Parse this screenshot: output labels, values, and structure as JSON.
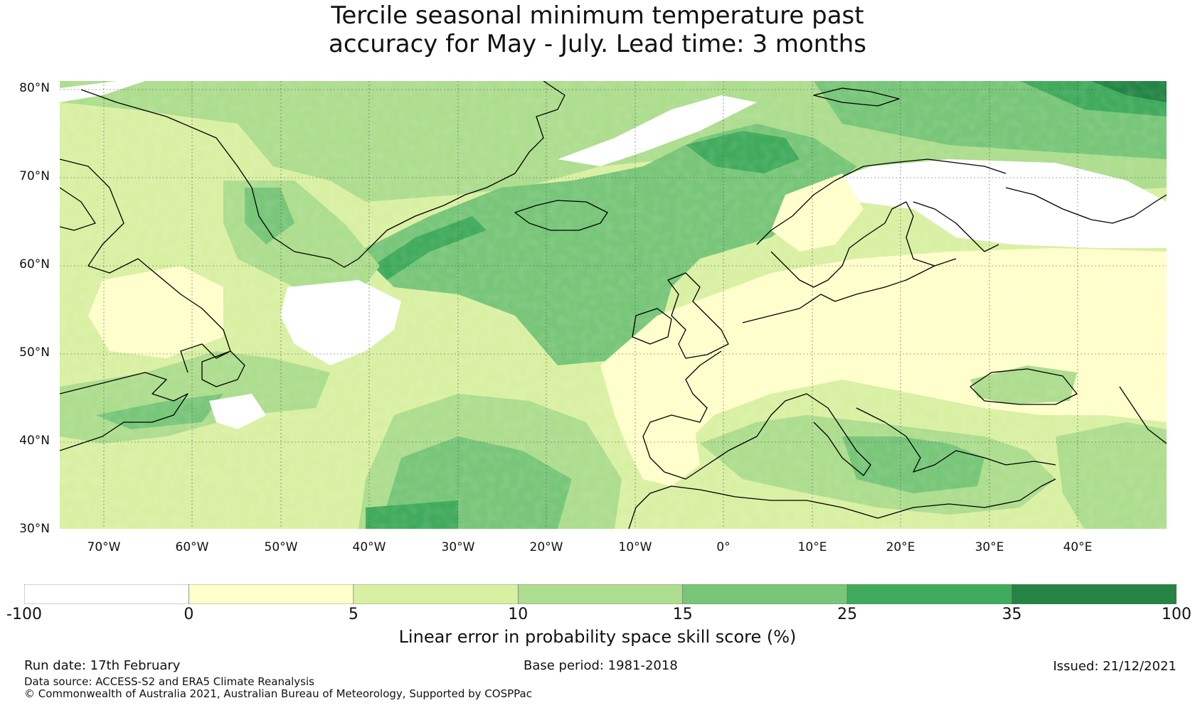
{
  "title_line1": "Tercile seasonal minimum temperature past",
  "title_line2": "accuracy for May - July. Lead time: 3 months",
  "map": {
    "lat_labels": [
      "80°N",
      "70°N",
      "60°N",
      "50°N",
      "40°N",
      "30°N"
    ],
    "lat_values": [
      80,
      70,
      60,
      50,
      40,
      30
    ],
    "lon_labels": [
      "70°W",
      "60°W",
      "50°W",
      "40°W",
      "30°W",
      "20°W",
      "10°W",
      "0°",
      "10°E",
      "20°E",
      "30°E",
      "40°E"
    ],
    "lon_values": [
      -70,
      -60,
      -50,
      -40,
      -30,
      -20,
      -10,
      0,
      10,
      20,
      30,
      40
    ],
    "extent": {
      "lon_min": -75,
      "lon_max": 50,
      "lat_min": 30,
      "lat_max": 81
    },
    "coastline_color": "#000000",
    "gridline_color": "#555555"
  },
  "colorbar": {
    "boundaries": [
      "-100",
      "0",
      "5",
      "10",
      "15",
      "25",
      "35",
      "100"
    ],
    "colors": [
      "#ffffff",
      "#ffffcc",
      "#d9f0a3",
      "#addd8e",
      "#78c679",
      "#41ab5d",
      "#238443"
    ],
    "label": "Linear error in probability space skill score (%)"
  },
  "footer": {
    "run_date": "Run date: 17th February",
    "base_period": "Base period: 1981-2018",
    "issued": "Issued: 21/12/2021",
    "data_source": "Data source: ACCESS-S2 and ERA5 Climate Reanalysis",
    "copyright": "© Commonwealth of Australia 2021, Australian Bureau of Meteorology, Supported by COSPPac"
  }
}
